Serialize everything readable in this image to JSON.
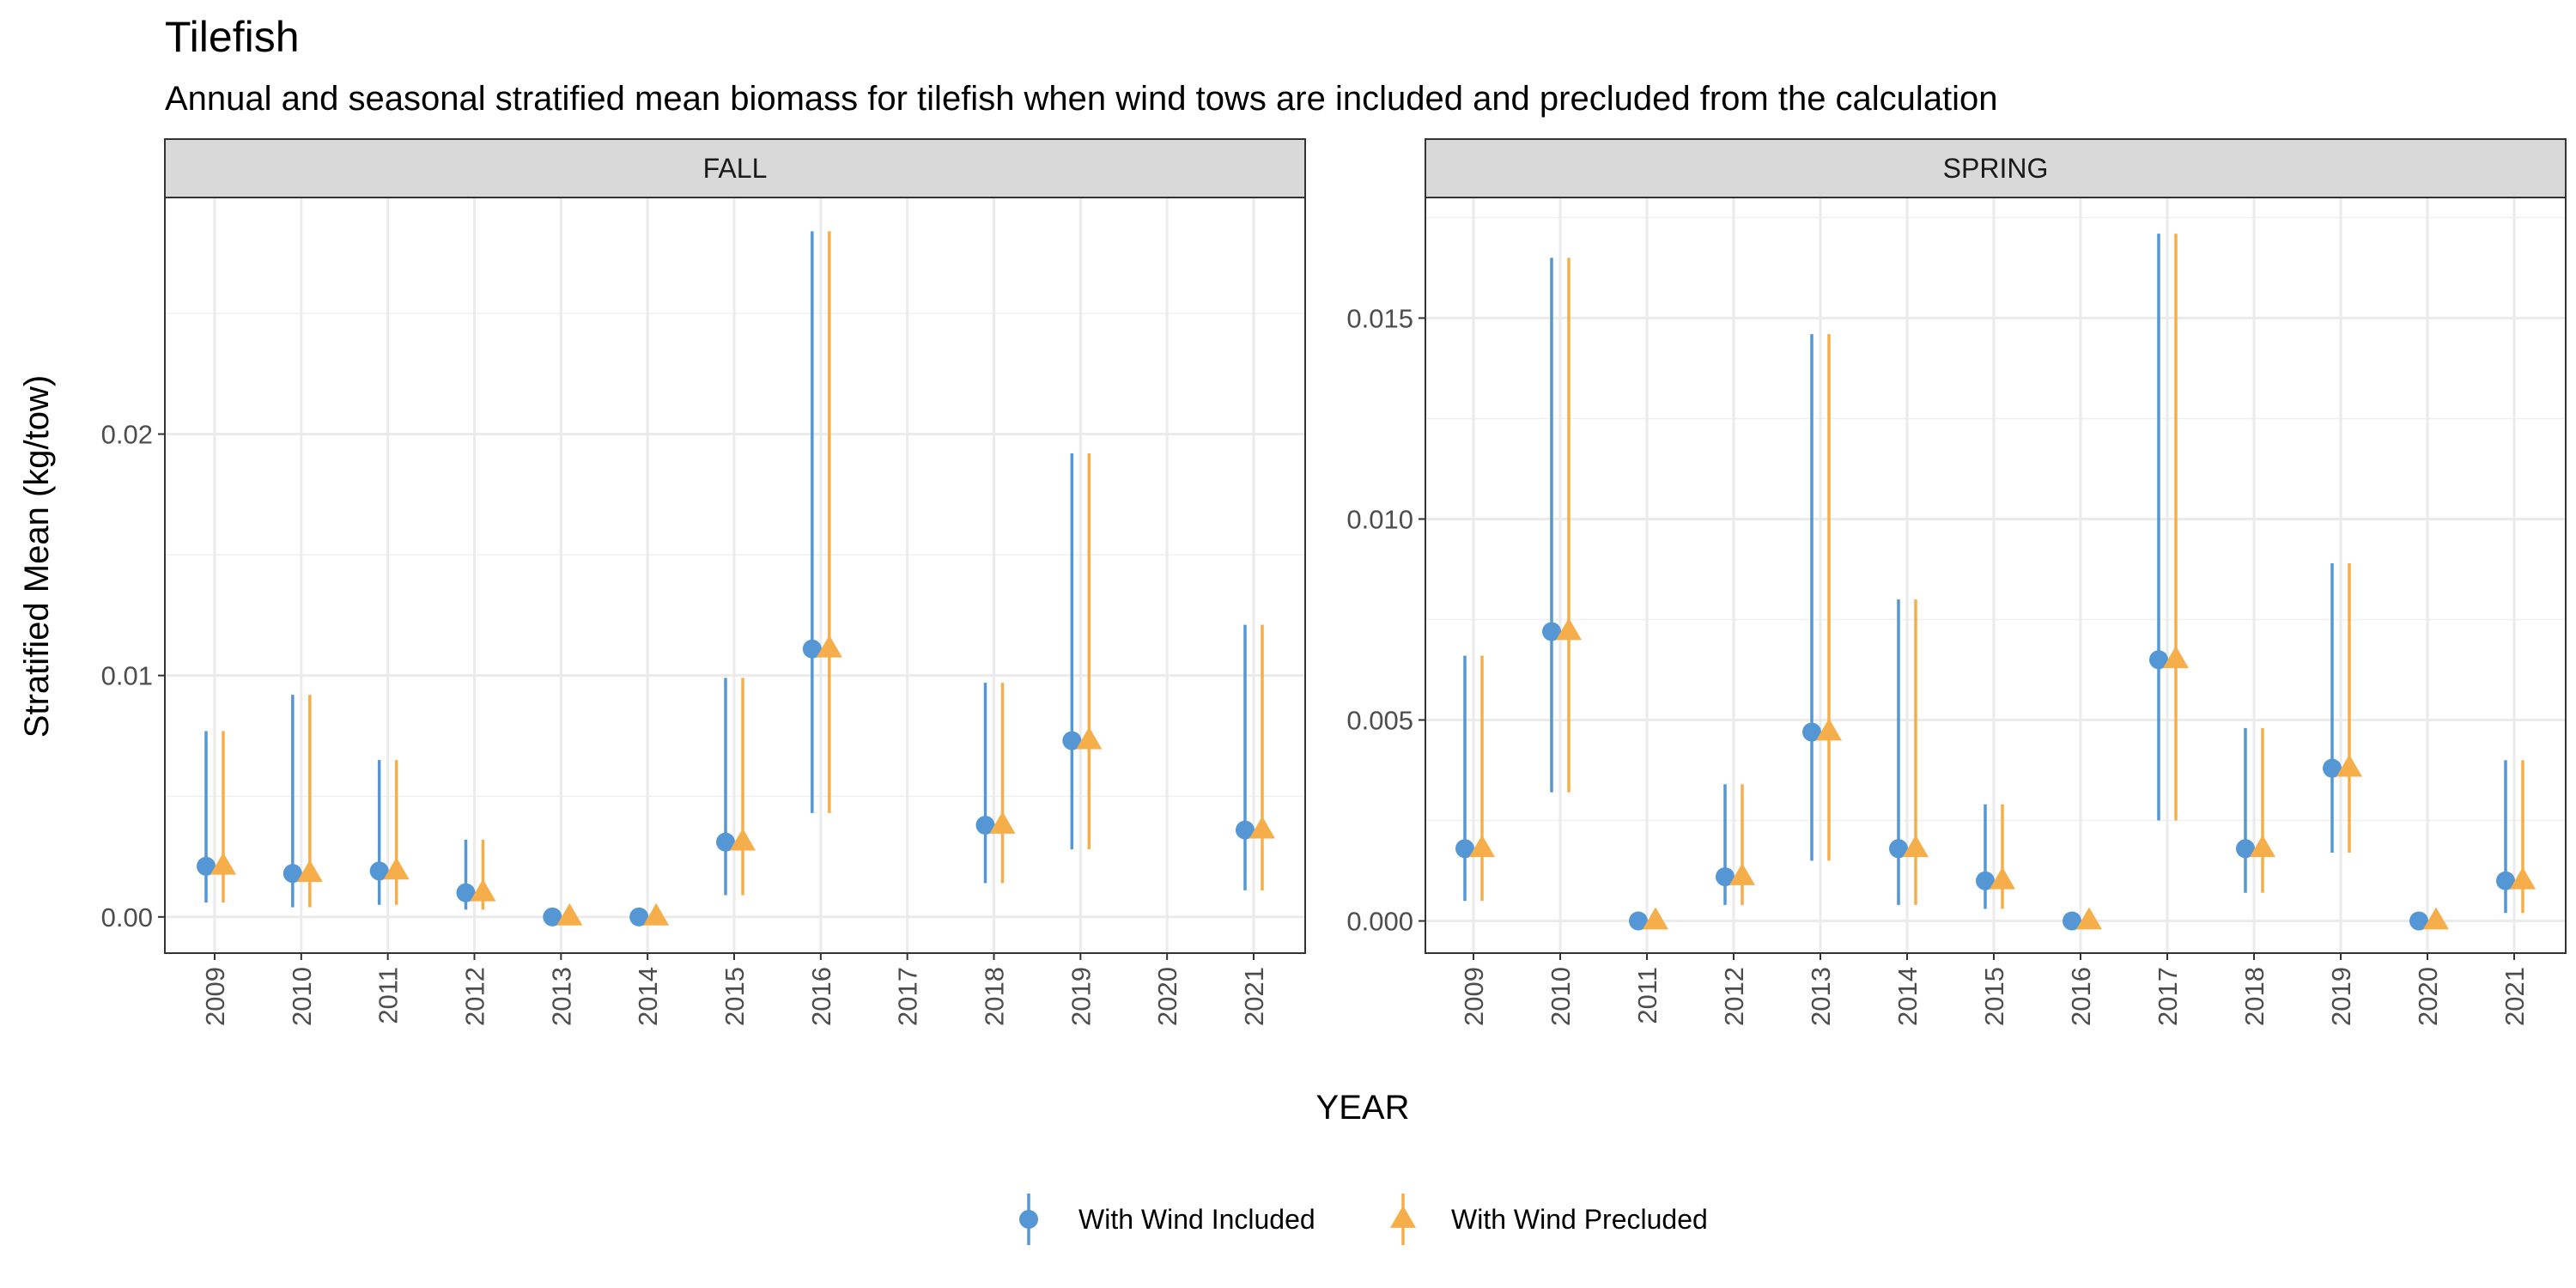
{
  "chart_data": {
    "type": "scatter",
    "title": "Tilefish",
    "subtitle": "Annual and seasonal stratified mean biomass for tilefish when wind tows are included and precluded from the calculation",
    "xlabel": "YEAR",
    "ylabel": "Stratified Mean (kg/tow)",
    "grid": true,
    "legend_position": "bottom",
    "legend": [
      {
        "name": "With Wind Included",
        "color": "#5597d4",
        "marker": "circle"
      },
      {
        "name": "With Wind Precluded",
        "color": "#f5ae4a",
        "marker": "triangle"
      }
    ],
    "panels": [
      {
        "name": "FALL",
        "ylim": [
          -0.0015,
          0.0298
        ],
        "yticks": [
          0,
          0.01,
          0.02
        ],
        "ytick_labels": [
          "0.00",
          "0.01",
          "0.02"
        ],
        "years": [
          "2009",
          "2010",
          "2011",
          "2012",
          "2013",
          "2014",
          "2015",
          "2016",
          "2017",
          "2018",
          "2019",
          "2020",
          "2021"
        ],
        "series": [
          {
            "name": "With Wind Included",
            "points": [
              {
                "year": "2009",
                "mean": 0.0021,
                "lower": 0.0006,
                "upper": 0.0077
              },
              {
                "year": "2010",
                "mean": 0.0018,
                "lower": 0.0004,
                "upper": 0.0092
              },
              {
                "year": "2011",
                "mean": 0.0019,
                "lower": 0.0005,
                "upper": 0.0065
              },
              {
                "year": "2012",
                "mean": 0.001,
                "lower": 0.0003,
                "upper": 0.0032
              },
              {
                "year": "2013",
                "mean": 0.0,
                "lower": 0.0,
                "upper": 0.0
              },
              {
                "year": "2014",
                "mean": 0.0,
                "lower": 0.0,
                "upper": 0.0
              },
              {
                "year": "2015",
                "mean": 0.0031,
                "lower": 0.0009,
                "upper": 0.0099
              },
              {
                "year": "2016",
                "mean": 0.0111,
                "lower": 0.0043,
                "upper": 0.0284
              },
              {
                "year": "2018",
                "mean": 0.0038,
                "lower": 0.0014,
                "upper": 0.0097
              },
              {
                "year": "2019",
                "mean": 0.0073,
                "lower": 0.0028,
                "upper": 0.0192
              },
              {
                "year": "2021",
                "mean": 0.0036,
                "lower": 0.0011,
                "upper": 0.0121
              }
            ]
          },
          {
            "name": "With Wind Precluded",
            "points": [
              {
                "year": "2009",
                "mean": 0.0021,
                "lower": 0.0006,
                "upper": 0.0077
              },
              {
                "year": "2010",
                "mean": 0.0018,
                "lower": 0.0004,
                "upper": 0.0092
              },
              {
                "year": "2011",
                "mean": 0.0019,
                "lower": 0.0005,
                "upper": 0.0065
              },
              {
                "year": "2012",
                "mean": 0.001,
                "lower": 0.0003,
                "upper": 0.0032
              },
              {
                "year": "2013",
                "mean": 0.0,
                "lower": 0.0,
                "upper": 0.0
              },
              {
                "year": "2014",
                "mean": 0.0,
                "lower": 0.0,
                "upper": 0.0
              },
              {
                "year": "2015",
                "mean": 0.0031,
                "lower": 0.0009,
                "upper": 0.0099
              },
              {
                "year": "2016",
                "mean": 0.0111,
                "lower": 0.0043,
                "upper": 0.0284
              },
              {
                "year": "2018",
                "mean": 0.0038,
                "lower": 0.0014,
                "upper": 0.0097
              },
              {
                "year": "2019",
                "mean": 0.0073,
                "lower": 0.0028,
                "upper": 0.0192
              },
              {
                "year": "2021",
                "mean": 0.0036,
                "lower": 0.0011,
                "upper": 0.0121
              }
            ]
          }
        ]
      },
      {
        "name": "SPRING",
        "ylim": [
          -0.0008,
          0.018
        ],
        "yticks": [
          0,
          0.005,
          0.01,
          0.015
        ],
        "ytick_labels": [
          "0.000",
          "0.005",
          "0.010",
          "0.015"
        ],
        "years": [
          "2009",
          "2010",
          "2011",
          "2012",
          "2013",
          "2014",
          "2015",
          "2016",
          "2017",
          "2018",
          "2019",
          "2020",
          "2021"
        ],
        "series": [
          {
            "name": "With Wind Included",
            "points": [
              {
                "year": "2009",
                "mean": 0.0018,
                "lower": 0.0005,
                "upper": 0.0066
              },
              {
                "year": "2010",
                "mean": 0.0072,
                "lower": 0.0032,
                "upper": 0.0165
              },
              {
                "year": "2011",
                "mean": 0.0,
                "lower": 0.0,
                "upper": 0.0
              },
              {
                "year": "2012",
                "mean": 0.0011,
                "lower": 0.0004,
                "upper": 0.0034
              },
              {
                "year": "2013",
                "mean": 0.0047,
                "lower": 0.0015,
                "upper": 0.0146
              },
              {
                "year": "2014",
                "mean": 0.0018,
                "lower": 0.0004,
                "upper": 0.008
              },
              {
                "year": "2015",
                "mean": 0.001,
                "lower": 0.0003,
                "upper": 0.0029
              },
              {
                "year": "2016",
                "mean": 0.0,
                "lower": 0.0,
                "upper": 0.0
              },
              {
                "year": "2017",
                "mean": 0.0065,
                "lower": 0.0025,
                "upper": 0.0171
              },
              {
                "year": "2018",
                "mean": 0.0018,
                "lower": 0.0007,
                "upper": 0.0048
              },
              {
                "year": "2019",
                "mean": 0.0038,
                "lower": 0.0017,
                "upper": 0.0089
              },
              {
                "year": "2020",
                "mean": 0.0,
                "lower": 0.0,
                "upper": 0.0
              },
              {
                "year": "2021",
                "mean": 0.001,
                "lower": 0.0002,
                "upper": 0.004
              }
            ]
          },
          {
            "name": "With Wind Precluded",
            "points": [
              {
                "year": "2009",
                "mean": 0.0018,
                "lower": 0.0005,
                "upper": 0.0066
              },
              {
                "year": "2010",
                "mean": 0.0072,
                "lower": 0.0032,
                "upper": 0.0165
              },
              {
                "year": "2011",
                "mean": 0.0,
                "lower": 0.0,
                "upper": 0.0
              },
              {
                "year": "2012",
                "mean": 0.0011,
                "lower": 0.0004,
                "upper": 0.0034
              },
              {
                "year": "2013",
                "mean": 0.0047,
                "lower": 0.0015,
                "upper": 0.0146
              },
              {
                "year": "2014",
                "mean": 0.0018,
                "lower": 0.0004,
                "upper": 0.008
              },
              {
                "year": "2015",
                "mean": 0.001,
                "lower": 0.0003,
                "upper": 0.0029
              },
              {
                "year": "2016",
                "mean": 0.0,
                "lower": 0.0,
                "upper": 0.0
              },
              {
                "year": "2017",
                "mean": 0.0065,
                "lower": 0.0025,
                "upper": 0.0171
              },
              {
                "year": "2018",
                "mean": 0.0018,
                "lower": 0.0007,
                "upper": 0.0048
              },
              {
                "year": "2019",
                "mean": 0.0038,
                "lower": 0.0017,
                "upper": 0.0089
              },
              {
                "year": "2020",
                "mean": 0.0,
                "lower": 0.0,
                "upper": 0.0
              },
              {
                "year": "2021",
                "mean": 0.001,
                "lower": 0.0002,
                "upper": 0.004
              }
            ]
          }
        ]
      }
    ]
  }
}
